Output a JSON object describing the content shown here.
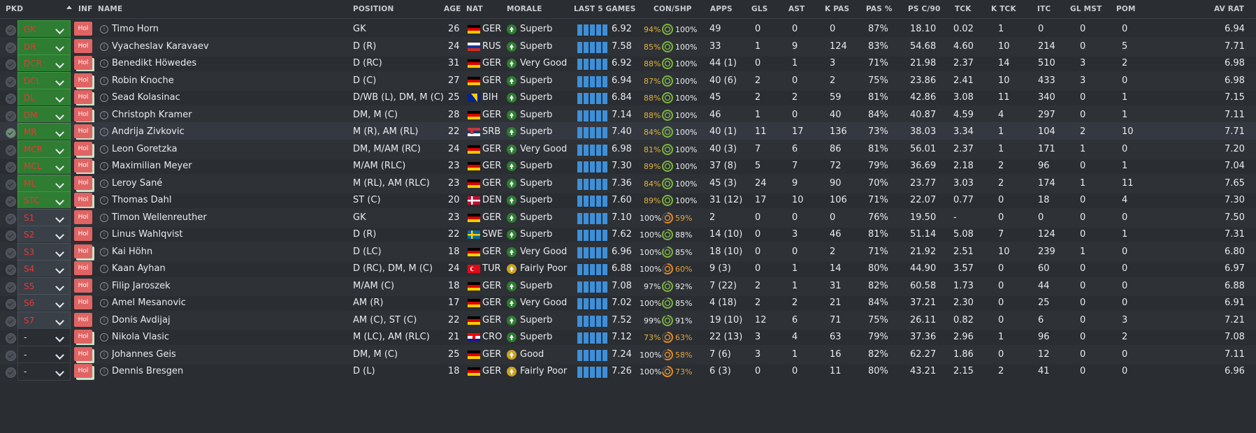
{
  "headers": {
    "pkd": "PKD",
    "inf": "INF",
    "name": "NAME",
    "position": "POSITION",
    "age": "AGE",
    "nat": "NAT",
    "morale": "MORALE",
    "last5": "LAST 5 GAMES",
    "conshp": "CON/SHP",
    "apps": "APPS",
    "gls": "GLS",
    "ast": "AST",
    "kpas": "K PAS",
    "paspct": "PAS %",
    "psc90": "PS C/90",
    "tck": "TCK",
    "ktck": "K TCK",
    "itc": "ITC",
    "glmst": "GL MST",
    "pom": "POM",
    "avrat": "AV RAT"
  },
  "inf_label": "Hol",
  "colors": {
    "green": "#2e7d32",
    "red": "#e53935",
    "bar": "#3d8fd8",
    "ring_green": "#7cb342",
    "ring_orange": "#e08a2c"
  },
  "rows": [
    {
      "pkd": "GK",
      "t": "start",
      "name": "Timo Horn",
      "position": "GK",
      "age": "26",
      "nat": "GER",
      "morale": "Superb",
      "avg": "6.92",
      "con": "94%",
      "shp": "100%",
      "apps": "49",
      "gls": "0",
      "ast": "0",
      "kpas": "0",
      "pas": "87%",
      "psc": "18.10",
      "tck": "0.02",
      "ktck": "1",
      "itc": "0",
      "glmst": "0",
      "pom": "0",
      "avrat": "6.94",
      "bars": [
        5,
        5,
        5,
        5,
        5
      ]
    },
    {
      "pkd": "DR",
      "t": "start",
      "name": "Vyacheslav Karavaev",
      "position": "D (R)",
      "age": "24",
      "nat": "RUS",
      "morale": "Superb",
      "avg": "7.58",
      "con": "85%",
      "shp": "100%",
      "apps": "33",
      "gls": "1",
      "ast": "9",
      "kpas": "124",
      "pas": "83%",
      "psc": "54.68",
      "tck": "4.60",
      "ktck": "10",
      "itc": "214",
      "glmst": "0",
      "pom": "5",
      "avrat": "7.71",
      "bars": [
        5,
        5,
        5,
        5,
        5
      ]
    },
    {
      "pkd": "DCR",
      "t": "start",
      "name": "Benedikt Höwedes",
      "position": "D (RC)",
      "age": "31",
      "nat": "GER",
      "morale": "Very Good",
      "avg": "6.92",
      "con": "88%",
      "shp": "100%",
      "apps": "44 (1)",
      "gls": "0",
      "ast": "1",
      "kpas": "3",
      "pas": "71%",
      "psc": "21.98",
      "tck": "2.37",
      "ktck": "14",
      "itc": "510",
      "glmst": "3",
      "pom": "2",
      "avrat": "6.98",
      "bars": [
        5,
        5,
        5,
        5,
        5
      ]
    },
    {
      "pkd": "DCL",
      "t": "start",
      "name": "Robin Knoche",
      "position": "D (C)",
      "age": "27",
      "nat": "GER",
      "morale": "Superb",
      "avg": "6.94",
      "con": "87%",
      "shp": "100%",
      "apps": "40 (6)",
      "gls": "2",
      "ast": "0",
      "kpas": "2",
      "pas": "75%",
      "psc": "23.86",
      "tck": "2.41",
      "ktck": "10",
      "itc": "433",
      "glmst": "3",
      "pom": "0",
      "avrat": "6.98",
      "bars": [
        5,
        5,
        5,
        5,
        5
      ]
    },
    {
      "pkd": "DL",
      "t": "start",
      "name": "Sead Kolasinac",
      "position": "D/WB (L), DM, M (C)",
      "age": "25",
      "nat": "BIH",
      "morale": "Superb",
      "avg": "6.84",
      "con": "88%",
      "shp": "100%",
      "apps": "45",
      "gls": "2",
      "ast": "2",
      "kpas": "59",
      "pas": "81%",
      "psc": "42.86",
      "tck": "3.08",
      "ktck": "11",
      "itc": "340",
      "glmst": "0",
      "pom": "1",
      "avrat": "7.15",
      "bars": [
        5,
        5,
        5,
        5,
        5
      ]
    },
    {
      "pkd": "DM",
      "t": "start",
      "name": "Christoph Kramer",
      "position": "DM, M (C)",
      "age": "28",
      "nat": "GER",
      "morale": "Superb",
      "avg": "7.14",
      "con": "88%",
      "shp": "100%",
      "apps": "46",
      "gls": "1",
      "ast": "0",
      "kpas": "40",
      "pas": "84%",
      "psc": "40.87",
      "tck": "4.59",
      "ktck": "4",
      "itc": "297",
      "glmst": "0",
      "pom": "1",
      "avrat": "7.11",
      "bars": [
        5,
        5,
        5,
        5,
        5
      ]
    },
    {
      "pkd": "MR",
      "t": "start",
      "name": "Andrija Zivkovic",
      "position": "M (R), AM (RL)",
      "age": "22",
      "nat": "SRB",
      "morale": "Superb",
      "avg": "7.40",
      "con": "84%",
      "shp": "100%",
      "apps": "40 (1)",
      "gls": "11",
      "ast": "17",
      "kpas": "136",
      "pas": "73%",
      "psc": "38.03",
      "tck": "3.34",
      "ktck": "1",
      "itc": "104",
      "glmst": "2",
      "pom": "10",
      "avrat": "7.71",
      "bars": [
        5,
        5,
        5,
        5,
        5
      ],
      "hl": true,
      "checked": true
    },
    {
      "pkd": "MCR",
      "t": "start",
      "name": "Leon Goretzka",
      "position": "DM, M/AM (RC)",
      "age": "24",
      "nat": "GER",
      "morale": "Very Good",
      "avg": "6.98",
      "con": "81%",
      "shp": "100%",
      "apps": "40 (3)",
      "gls": "7",
      "ast": "6",
      "kpas": "86",
      "pas": "81%",
      "psc": "56.01",
      "tck": "2.37",
      "ktck": "1",
      "itc": "171",
      "glmst": "1",
      "pom": "0",
      "avrat": "7.20",
      "bars": [
        5,
        5,
        5,
        5,
        5
      ]
    },
    {
      "pkd": "MCL",
      "t": "start",
      "name": "Maximilian Meyer",
      "position": "M/AM (RLC)",
      "age": "23",
      "nat": "GER",
      "morale": "Superb",
      "avg": "7.30",
      "con": "89%",
      "shp": "100%",
      "apps": "37 (8)",
      "gls": "5",
      "ast": "7",
      "kpas": "72",
      "pas": "79%",
      "psc": "36.69",
      "tck": "2.18",
      "ktck": "2",
      "itc": "96",
      "glmst": "0",
      "pom": "1",
      "avrat": "7.04",
      "bars": [
        5,
        5,
        5,
        5,
        5
      ]
    },
    {
      "pkd": "ML",
      "t": "start",
      "name": "Leroy Sané",
      "position": "M (RL), AM (RLC)",
      "age": "23",
      "nat": "GER",
      "morale": "Superb",
      "avg": "7.36",
      "con": "84%",
      "shp": "100%",
      "apps": "45 (3)",
      "gls": "24",
      "ast": "9",
      "kpas": "90",
      "pas": "70%",
      "psc": "23.77",
      "tck": "3.03",
      "ktck": "2",
      "itc": "174",
      "glmst": "1",
      "pom": "11",
      "avrat": "7.65",
      "bars": [
        5,
        5,
        5,
        5,
        5
      ]
    },
    {
      "pkd": "STC",
      "t": "start",
      "name": "Thomas Dahl",
      "position": "ST (C)",
      "age": "20",
      "nat": "DEN",
      "morale": "Superb",
      "avg": "7.60",
      "con": "89%",
      "shp": "100%",
      "apps": "31 (12)",
      "gls": "17",
      "ast": "10",
      "kpas": "106",
      "pas": "71%",
      "psc": "22.07",
      "tck": "0.77",
      "ktck": "0",
      "itc": "18",
      "glmst": "0",
      "pom": "4",
      "avrat": "7.30",
      "bars": [
        5,
        5,
        5,
        5,
        5
      ]
    },
    {
      "pkd": "S1",
      "t": "sub",
      "name": "Timon Wellenreuther",
      "position": "GK",
      "age": "23",
      "nat": "GER",
      "morale": "Superb",
      "avg": "7.10",
      "con": "100%",
      "shp": "59%",
      "apps": "2",
      "gls": "0",
      "ast": "0",
      "kpas": "0",
      "pas": "76%",
      "psc": "19.50",
      "tck": "-",
      "ktck": "0",
      "itc": "0",
      "glmst": "0",
      "pom": "0",
      "avrat": "7.50",
      "bars": [
        5,
        5,
        5,
        5,
        5
      ]
    },
    {
      "pkd": "S2",
      "t": "sub",
      "name": "Linus Wahlqvist",
      "position": "D (R)",
      "age": "22",
      "nat": "SWE",
      "morale": "Superb",
      "avg": "7.62",
      "con": "100%",
      "shp": "88%",
      "apps": "14 (10)",
      "gls": "0",
      "ast": "3",
      "kpas": "46",
      "pas": "81%",
      "psc": "51.14",
      "tck": "5.08",
      "ktck": "7",
      "itc": "124",
      "glmst": "0",
      "pom": "1",
      "avrat": "7.31",
      "bars": [
        5,
        5,
        5,
        5,
        5
      ]
    },
    {
      "pkd": "S3",
      "t": "sub",
      "name": "Kai Höhn",
      "position": "D (LC)",
      "age": "18",
      "nat": "GER",
      "morale": "Very Good",
      "avg": "6.96",
      "con": "100%",
      "shp": "85%",
      "apps": "18 (10)",
      "gls": "0",
      "ast": "0",
      "kpas": "2",
      "pas": "71%",
      "psc": "21.92",
      "tck": "2.51",
      "ktck": "10",
      "itc": "239",
      "glmst": "1",
      "pom": "0",
      "avrat": "6.80",
      "bars": [
        5,
        5,
        5,
        5,
        5
      ]
    },
    {
      "pkd": "S4",
      "t": "sub",
      "name": "Kaan Ayhan",
      "position": "D (RC), DM, M (C)",
      "age": "24",
      "nat": "TUR",
      "morale": "Fairly Poor",
      "avg": "6.88",
      "con": "100%",
      "shp": "60%",
      "apps": "9 (3)",
      "gls": "0",
      "ast": "1",
      "kpas": "14",
      "pas": "80%",
      "psc": "44.90",
      "tck": "3.57",
      "ktck": "0",
      "itc": "60",
      "glmst": "0",
      "pom": "0",
      "avrat": "6.97",
      "bars": [
        5,
        5,
        5,
        5,
        5
      ]
    },
    {
      "pkd": "S5",
      "t": "sub",
      "name": "Filip Jaroszek",
      "position": "M/AM (C)",
      "age": "18",
      "nat": "GER",
      "morale": "Superb",
      "avg": "7.08",
      "con": "97%",
      "shp": "92%",
      "apps": "7 (22)",
      "gls": "2",
      "ast": "1",
      "kpas": "31",
      "pas": "82%",
      "psc": "60.58",
      "tck": "1.73",
      "ktck": "0",
      "itc": "44",
      "glmst": "0",
      "pom": "0",
      "avrat": "6.88",
      "bars": [
        5,
        5,
        5,
        5,
        5
      ]
    },
    {
      "pkd": "S6",
      "t": "sub",
      "name": "Amel Mesanovic",
      "position": "AM (R)",
      "age": "17",
      "nat": "GER",
      "morale": "Very Good",
      "avg": "7.02",
      "con": "100%",
      "shp": "85%",
      "apps": "4 (18)",
      "gls": "2",
      "ast": "2",
      "kpas": "21",
      "pas": "84%",
      "psc": "37.21",
      "tck": "2.30",
      "ktck": "0",
      "itc": "25",
      "glmst": "0",
      "pom": "0",
      "avrat": "6.91",
      "bars": [
        5,
        5,
        5,
        5,
        5
      ]
    },
    {
      "pkd": "S7",
      "t": "sub",
      "name": "Donis Avdijaj",
      "position": "AM (C), ST (C)",
      "age": "22",
      "nat": "GER",
      "morale": "Superb",
      "avg": "7.52",
      "con": "99%",
      "shp": "91%",
      "apps": "19 (10)",
      "gls": "12",
      "ast": "6",
      "kpas": "71",
      "pas": "75%",
      "psc": "26.11",
      "tck": "0.82",
      "ktck": "0",
      "itc": "6",
      "glmst": "0",
      "pom": "3",
      "avrat": "7.21",
      "bars": [
        5,
        5,
        5,
        5,
        5
      ]
    },
    {
      "pkd": "-",
      "t": "none",
      "name": "Nikola Vlasic",
      "position": "M (LC), AM (RLC)",
      "age": "21",
      "nat": "CRO",
      "morale": "Superb",
      "avg": "7.12",
      "con": "73%",
      "shp": "63%",
      "apps": "22 (13)",
      "gls": "3",
      "ast": "4",
      "kpas": "63",
      "pas": "79%",
      "psc": "37.36",
      "tck": "2.96",
      "ktck": "1",
      "itc": "96",
      "glmst": "0",
      "pom": "2",
      "avrat": "7.08",
      "bars": [
        5,
        5,
        5,
        5,
        5
      ]
    },
    {
      "pkd": "-",
      "t": "none",
      "name": "Johannes Geis",
      "position": "DM, M (C)",
      "age": "25",
      "nat": "GER",
      "morale": "Good",
      "avg": "7.24",
      "con": "100%",
      "shp": "58%",
      "apps": "7 (6)",
      "gls": "3",
      "ast": "1",
      "kpas": "16",
      "pas": "82%",
      "psc": "62.27",
      "tck": "1.86",
      "ktck": "0",
      "itc": "12",
      "glmst": "0",
      "pom": "0",
      "avrat": "7.11",
      "bars": [
        5,
        5,
        5,
        5,
        5
      ]
    },
    {
      "pkd": "-",
      "t": "none",
      "name": "Dennis Bresgen",
      "position": "D (L)",
      "age": "18",
      "nat": "GER",
      "morale": "Fairly Poor",
      "avg": "7.26",
      "con": "100%",
      "shp": "73%",
      "apps": "6 (3)",
      "gls": "0",
      "ast": "0",
      "kpas": "11",
      "pas": "80%",
      "psc": "43.21",
      "tck": "2.15",
      "ktck": "2",
      "itc": "41",
      "glmst": "0",
      "pom": "0",
      "avrat": "6.96",
      "bars": [
        5,
        5,
        5,
        5,
        5
      ]
    }
  ]
}
